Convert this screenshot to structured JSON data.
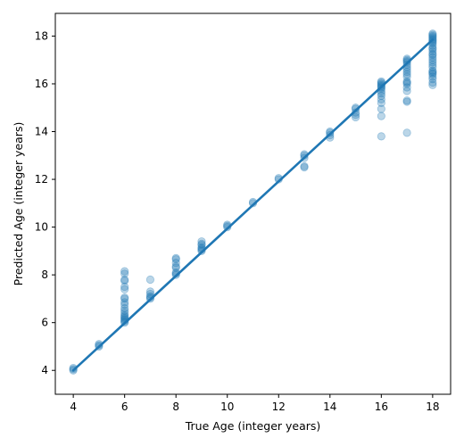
{
  "chart_data": {
    "type": "scatter",
    "title": "",
    "xlabel": "True Age (integer years)",
    "ylabel": "Predicted Age (integer years)",
    "xlim": [
      3.3,
      18.7
    ],
    "ylim": [
      3.0,
      18.95
    ],
    "xticks": [
      4,
      6,
      8,
      10,
      12,
      14,
      16,
      18
    ],
    "yticks": [
      4,
      6,
      8,
      10,
      12,
      14,
      16,
      18
    ],
    "grid": false,
    "point_color": "#1f77b4",
    "line_color": "#1f77b4",
    "series": [
      {
        "kind": "points",
        "x": [
          4,
          4,
          4,
          5,
          5,
          5,
          6,
          6,
          6,
          6,
          6,
          6,
          6,
          6,
          6,
          6,
          6,
          6,
          6,
          6,
          6,
          6,
          6,
          6,
          6,
          6,
          7,
          7,
          7,
          7,
          7,
          7,
          8,
          8,
          8,
          8,
          8,
          8,
          8,
          8,
          9,
          9,
          9,
          9,
          9,
          9,
          9,
          10,
          10,
          10,
          11,
          11,
          12,
          12,
          13,
          13,
          13,
          13,
          13,
          14,
          14,
          14,
          14,
          15,
          15,
          15,
          15,
          15,
          16,
          16,
          16,
          16,
          16,
          16,
          16,
          16,
          16,
          16,
          16,
          16,
          16,
          16,
          16,
          17,
          17,
          17,
          17,
          17,
          17,
          17,
          17,
          17,
          17,
          17,
          17,
          17,
          17,
          17,
          17,
          17,
          17,
          18,
          18,
          18,
          18,
          18,
          18,
          18,
          18,
          18,
          18,
          18,
          18,
          18,
          18,
          18,
          18,
          18,
          18,
          18,
          18,
          18,
          18,
          18,
          18,
          18,
          18,
          18,
          18
        ],
        "y": [
          4.0,
          4.05,
          4.1,
          5.0,
          5.05,
          5.1,
          6.0,
          6.05,
          6.1,
          6.15,
          6.2,
          6.25,
          6.3,
          6.4,
          6.5,
          6.6,
          6.75,
          6.85,
          7.0,
          7.05,
          7.4,
          7.5,
          7.75,
          7.8,
          8.05,
          8.15,
          7.0,
          7.05,
          7.1,
          7.2,
          7.3,
          7.8,
          8.0,
          8.05,
          8.1,
          8.3,
          8.35,
          8.5,
          8.65,
          8.7,
          9.0,
          9.05,
          9.1,
          9.15,
          9.25,
          9.3,
          9.4,
          10.0,
          10.05,
          10.1,
          11.0,
          11.05,
          12.0,
          12.05,
          12.5,
          12.55,
          12.9,
          13.0,
          13.05,
          13.75,
          13.85,
          13.95,
          14.0,
          14.6,
          14.7,
          14.8,
          14.95,
          15.0,
          13.8,
          14.65,
          14.95,
          15.2,
          15.35,
          15.5,
          15.6,
          15.7,
          15.8,
          15.85,
          15.9,
          15.95,
          16.0,
          16.05,
          16.1,
          13.95,
          15.25,
          15.3,
          15.7,
          15.85,
          16.0,
          16.05,
          16.1,
          16.3,
          16.4,
          16.5,
          16.6,
          16.7,
          16.8,
          16.9,
          16.95,
          17.0,
          17.05,
          15.95,
          16.05,
          16.2,
          16.3,
          16.4,
          16.45,
          16.5,
          16.55,
          16.7,
          16.8,
          16.9,
          17.0,
          17.1,
          17.2,
          17.25,
          17.35,
          17.45,
          17.5,
          17.6,
          17.7,
          17.75,
          17.8,
          17.85,
          17.9,
          17.95,
          18.0,
          18.05,
          18.1
        ]
      },
      {
        "kind": "line",
        "x": [
          4,
          18
        ],
        "y": [
          4.0,
          17.85
        ]
      }
    ]
  }
}
